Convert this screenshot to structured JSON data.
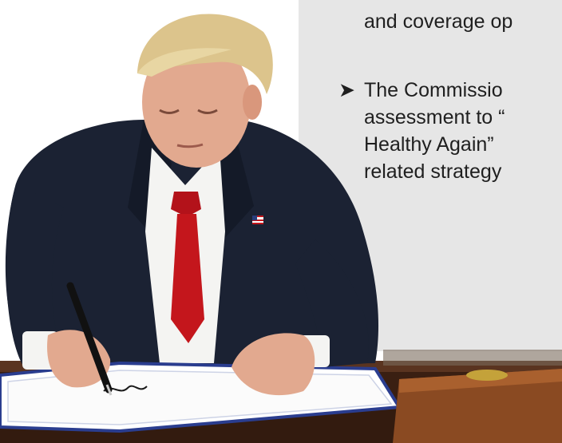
{
  "panel": {
    "lines": [
      "and coverage op",
      "The Commissio",
      "assessment to “",
      "Healthy Again”",
      "related strategy"
    ],
    "bullet_icon": "arrow-bullet-icon"
  },
  "photo": {
    "subject": "man-signing-document",
    "colors": {
      "suit": "#1b2233",
      "shirt": "#f4f4f2",
      "tie": "#c4161c",
      "hair": "#dcc48c",
      "skin": "#e2a98f",
      "desk": "#3a1f12",
      "panel": "#e6e6e6"
    }
  }
}
